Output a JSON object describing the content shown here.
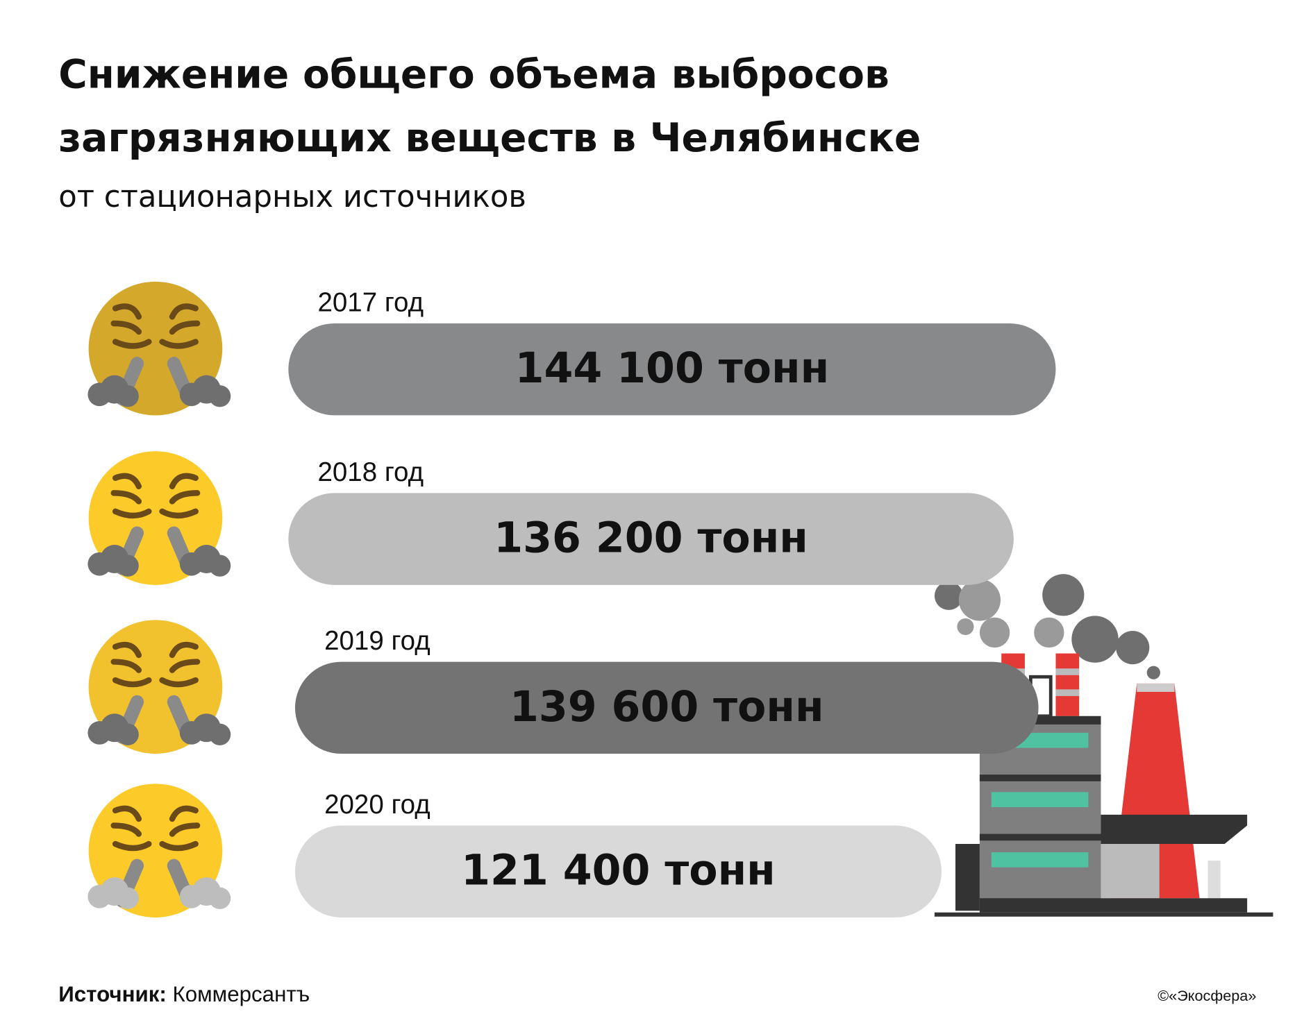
{
  "title": [
    "Снижение общего объема выбросов",
    "загрязняющих веществ в Челябинске"
  ],
  "chart_data": {
    "type": "bar",
    "subtitle": "от стационарных источников",
    "categories": [
      "2017 год",
      "2018 год",
      "2019 год",
      "2020 год"
    ],
    "values": [
      144100,
      136200,
      139600,
      121400
    ],
    "value_labels": [
      "144 100 тонн",
      "136 200 тонн",
      "139 600 тонн",
      "121 400 тонн"
    ],
    "colors": [
      "#87898b",
      "#bdbdbd",
      "#737373",
      "#d9d9d9"
    ]
  },
  "source": {
    "label": "Источник:",
    "name": "Коммерсантъ"
  },
  "copyright": "©«Экосфера»"
}
